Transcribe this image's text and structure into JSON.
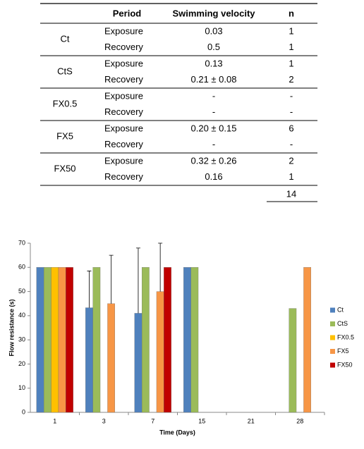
{
  "table": {
    "header": [
      "Period",
      "Swimming velocity",
      "n"
    ],
    "groups": [
      {
        "label": "Ct",
        "rows": [
          [
            "Exposure",
            "0.03",
            "1"
          ],
          [
            "Recovery",
            "0.5",
            "1"
          ]
        ]
      },
      {
        "label": "CtS",
        "rows": [
          [
            "Exposure",
            "0.13",
            "1"
          ],
          [
            "Recovery",
            "0.21 ± 0.08",
            "2"
          ]
        ]
      },
      {
        "label": "FX0.5",
        "rows": [
          [
            "Exposure",
            "-",
            "-"
          ],
          [
            "Recovery",
            "-",
            "-"
          ]
        ]
      },
      {
        "label": "FX5",
        "rows": [
          [
            "Exposure",
            "0.20 ± 0.15",
            "6"
          ],
          [
            "Recovery",
            "-",
            "-"
          ]
        ]
      },
      {
        "label": "FX50",
        "rows": [
          [
            "Exposure",
            "0.32 ± 0.26",
            "2"
          ],
          [
            "Recovery",
            "0.16",
            "1"
          ]
        ]
      }
    ],
    "total": "14"
  },
  "chart_data": {
    "type": "bar",
    "x_label": "Time (Days)",
    "y_label": "Flow resistance (s)",
    "categories": [
      "1",
      "3",
      "7",
      "15",
      "21",
      "28"
    ],
    "series": [
      {
        "name": "Ct",
        "color": "#4f81bd",
        "values": [
          60,
          43.3,
          41,
          60,
          null,
          null
        ],
        "errors": [
          null,
          15.2,
          27,
          null,
          null,
          null
        ]
      },
      {
        "name": "CtS",
        "color": "#9bbb59",
        "values": [
          60,
          60,
          60,
          60,
          null,
          43
        ],
        "errors": [
          null,
          null,
          null,
          null,
          null,
          null
        ]
      },
      {
        "name": "FX0.5",
        "color": "#ffc000",
        "values": [
          60,
          null,
          null,
          null,
          null,
          null
        ],
        "errors": [
          null,
          null,
          null,
          null,
          null,
          null
        ]
      },
      {
        "name": "FX5",
        "color": "#f79646",
        "values": [
          60,
          45,
          50,
          null,
          null,
          60
        ],
        "errors": [
          null,
          20,
          20,
          null,
          null,
          null
        ]
      },
      {
        "name": "FX50",
        "color": "#c00000",
        "values": [
          60,
          null,
          60,
          null,
          null,
          null
        ],
        "errors": [
          null,
          null,
          null,
          null,
          null,
          null
        ]
      }
    ],
    "ylim": [
      0,
      70
    ],
    "yticks": [
      0,
      10,
      20,
      30,
      40,
      50,
      60,
      70
    ],
    "grid": false,
    "legend": "right"
  }
}
